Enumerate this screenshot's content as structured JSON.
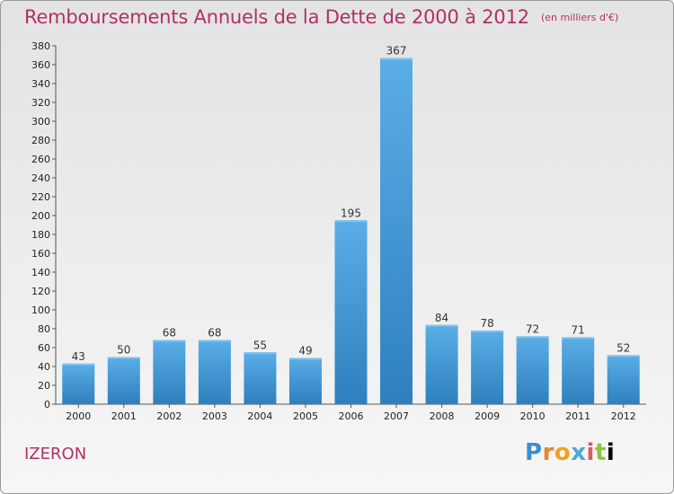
{
  "title": "Remboursements Annuels de la Dette de 2000 à 2012",
  "subtitle": "(en milliers d'€)",
  "commune": "IZERON",
  "brand": {
    "letters": [
      "P",
      "r",
      "o",
      "x",
      "i",
      "t",
      "i"
    ],
    "name": "Proxiti"
  },
  "colors": {
    "title": "#b0306a",
    "bar_top": "#5aaee6",
    "bar_bottom": "#2f7fbe"
  },
  "chart_data": {
    "type": "bar",
    "title": "Remboursements Annuels de la Dette de 2000 à 2012",
    "subtitle": "(en milliers d'€)",
    "categories": [
      "2000",
      "2001",
      "2002",
      "2003",
      "2004",
      "2005",
      "2006",
      "2007",
      "2008",
      "2009",
      "2010",
      "2011",
      "2012"
    ],
    "values": [
      43,
      50,
      68,
      68,
      55,
      49,
      195,
      367,
      84,
      78,
      72,
      71,
      52
    ],
    "ylim": [
      0,
      380
    ],
    "yticks": [
      0,
      20,
      40,
      60,
      80,
      100,
      120,
      140,
      160,
      180,
      200,
      220,
      240,
      260,
      280,
      300,
      320,
      340,
      360,
      380
    ],
    "grid": false,
    "data_labels": true
  }
}
